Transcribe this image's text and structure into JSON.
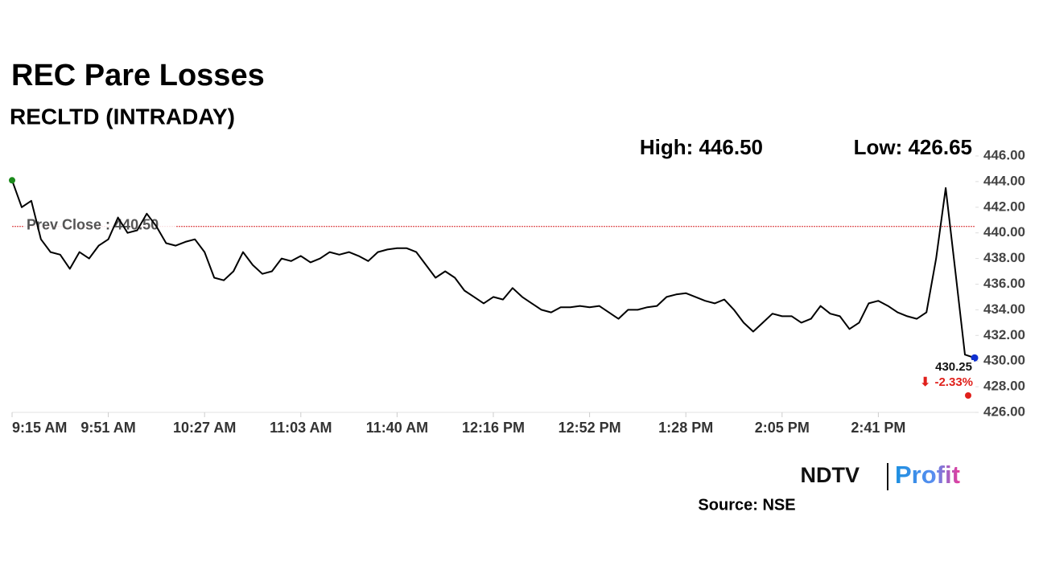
{
  "chart_data": {
    "type": "line",
    "title": "REC Pare Losses",
    "subtitle": "RECLTD (INTRADAY)",
    "high_label": "High: 446.50",
    "low_label": "Low: 426.65",
    "reference_line": {
      "value": 440.5,
      "label": "Prev Close : 440.50",
      "color": "#d62728"
    },
    "annotations": [
      {
        "text": "430.25",
        "color": "#111111"
      },
      {
        "text": "-2.33%",
        "color": "#e0201b"
      }
    ],
    "source": "Source: NSE",
    "brand": [
      "NDTV",
      "Profit"
    ],
    "categories": [
      "9:15 AM",
      null,
      null,
      null,
      null,
      null,
      null,
      null,
      null,
      null,
      "9:51 AM",
      null,
      null,
      null,
      null,
      null,
      null,
      null,
      null,
      null,
      "10:27 AM",
      null,
      null,
      null,
      null,
      null,
      null,
      null,
      null,
      null,
      "11:03 AM",
      null,
      null,
      null,
      null,
      null,
      null,
      null,
      null,
      null,
      "11:40 AM",
      null,
      null,
      null,
      null,
      null,
      null,
      null,
      null,
      null,
      "12:16 PM",
      null,
      null,
      null,
      null,
      null,
      null,
      null,
      null,
      null,
      "12:52 PM",
      null,
      null,
      null,
      null,
      null,
      null,
      null,
      null,
      null,
      "1:28 PM",
      null,
      null,
      null,
      null,
      null,
      null,
      null,
      null,
      null,
      "2:05 PM",
      null,
      null,
      null,
      null,
      null,
      null,
      null,
      null,
      null,
      "2:41 PM",
      null,
      null,
      null,
      null,
      null,
      null,
      null,
      null,
      null,
      null
    ],
    "series": [
      {
        "name": "RECLTD",
        "color": "#000000",
        "values": [
          444.1,
          442,
          442.5,
          439.5,
          438.5,
          438.3,
          437.2,
          438.5,
          438,
          439,
          439.5,
          441.2,
          440,
          440.2,
          441.5,
          440.5,
          439.2,
          439,
          439.3,
          439.5,
          438.5,
          436.5,
          436.3,
          437,
          438.5,
          437.5,
          436.8,
          437,
          438,
          437.8,
          438.2,
          437.7,
          438,
          438.5,
          438.3,
          438.5,
          438.2,
          437.8,
          438.5,
          438.7,
          438.8,
          438.8,
          438.5,
          437.5,
          436.5,
          437,
          436.5,
          435.5,
          435,
          434.5,
          435,
          434.8,
          435.7,
          435,
          434.5,
          434,
          433.8,
          434.2,
          434.2,
          434.3,
          434.2,
          434.3,
          433.8,
          433.3,
          434,
          434,
          434.2,
          434.3,
          435,
          435.2,
          435.3,
          435,
          434.7,
          434.5,
          434.8,
          434,
          433,
          432.3,
          433,
          433.7,
          433.5,
          433.5,
          433,
          433.3,
          434.3,
          433.7,
          433.5,
          432.5,
          433,
          434.5,
          434.7,
          434.3,
          433.8,
          433.5,
          433.3,
          433.8,
          438,
          443.5,
          437,
          430.5,
          430.25
        ]
      }
    ],
    "start_color": "#1a8a1a",
    "end_color": "#1030d0",
    "ylim": [
      426,
      446
    ],
    "yticks": [
      {
        "value": 426,
        "label": "426.00"
      },
      {
        "value": 428,
        "label": "428.00"
      },
      {
        "value": 430,
        "label": "430.00"
      },
      {
        "value": 432,
        "label": "432.00"
      },
      {
        "value": 434,
        "label": "434.00"
      },
      {
        "value": 436,
        "label": "436.00"
      },
      {
        "value": 438,
        "label": "438.00"
      },
      {
        "value": 440,
        "label": "440.00"
      },
      {
        "value": 442,
        "label": "442.00"
      },
      {
        "value": 444,
        "label": "444.00"
      },
      {
        "value": 446,
        "label": "446.00"
      }
    ]
  }
}
